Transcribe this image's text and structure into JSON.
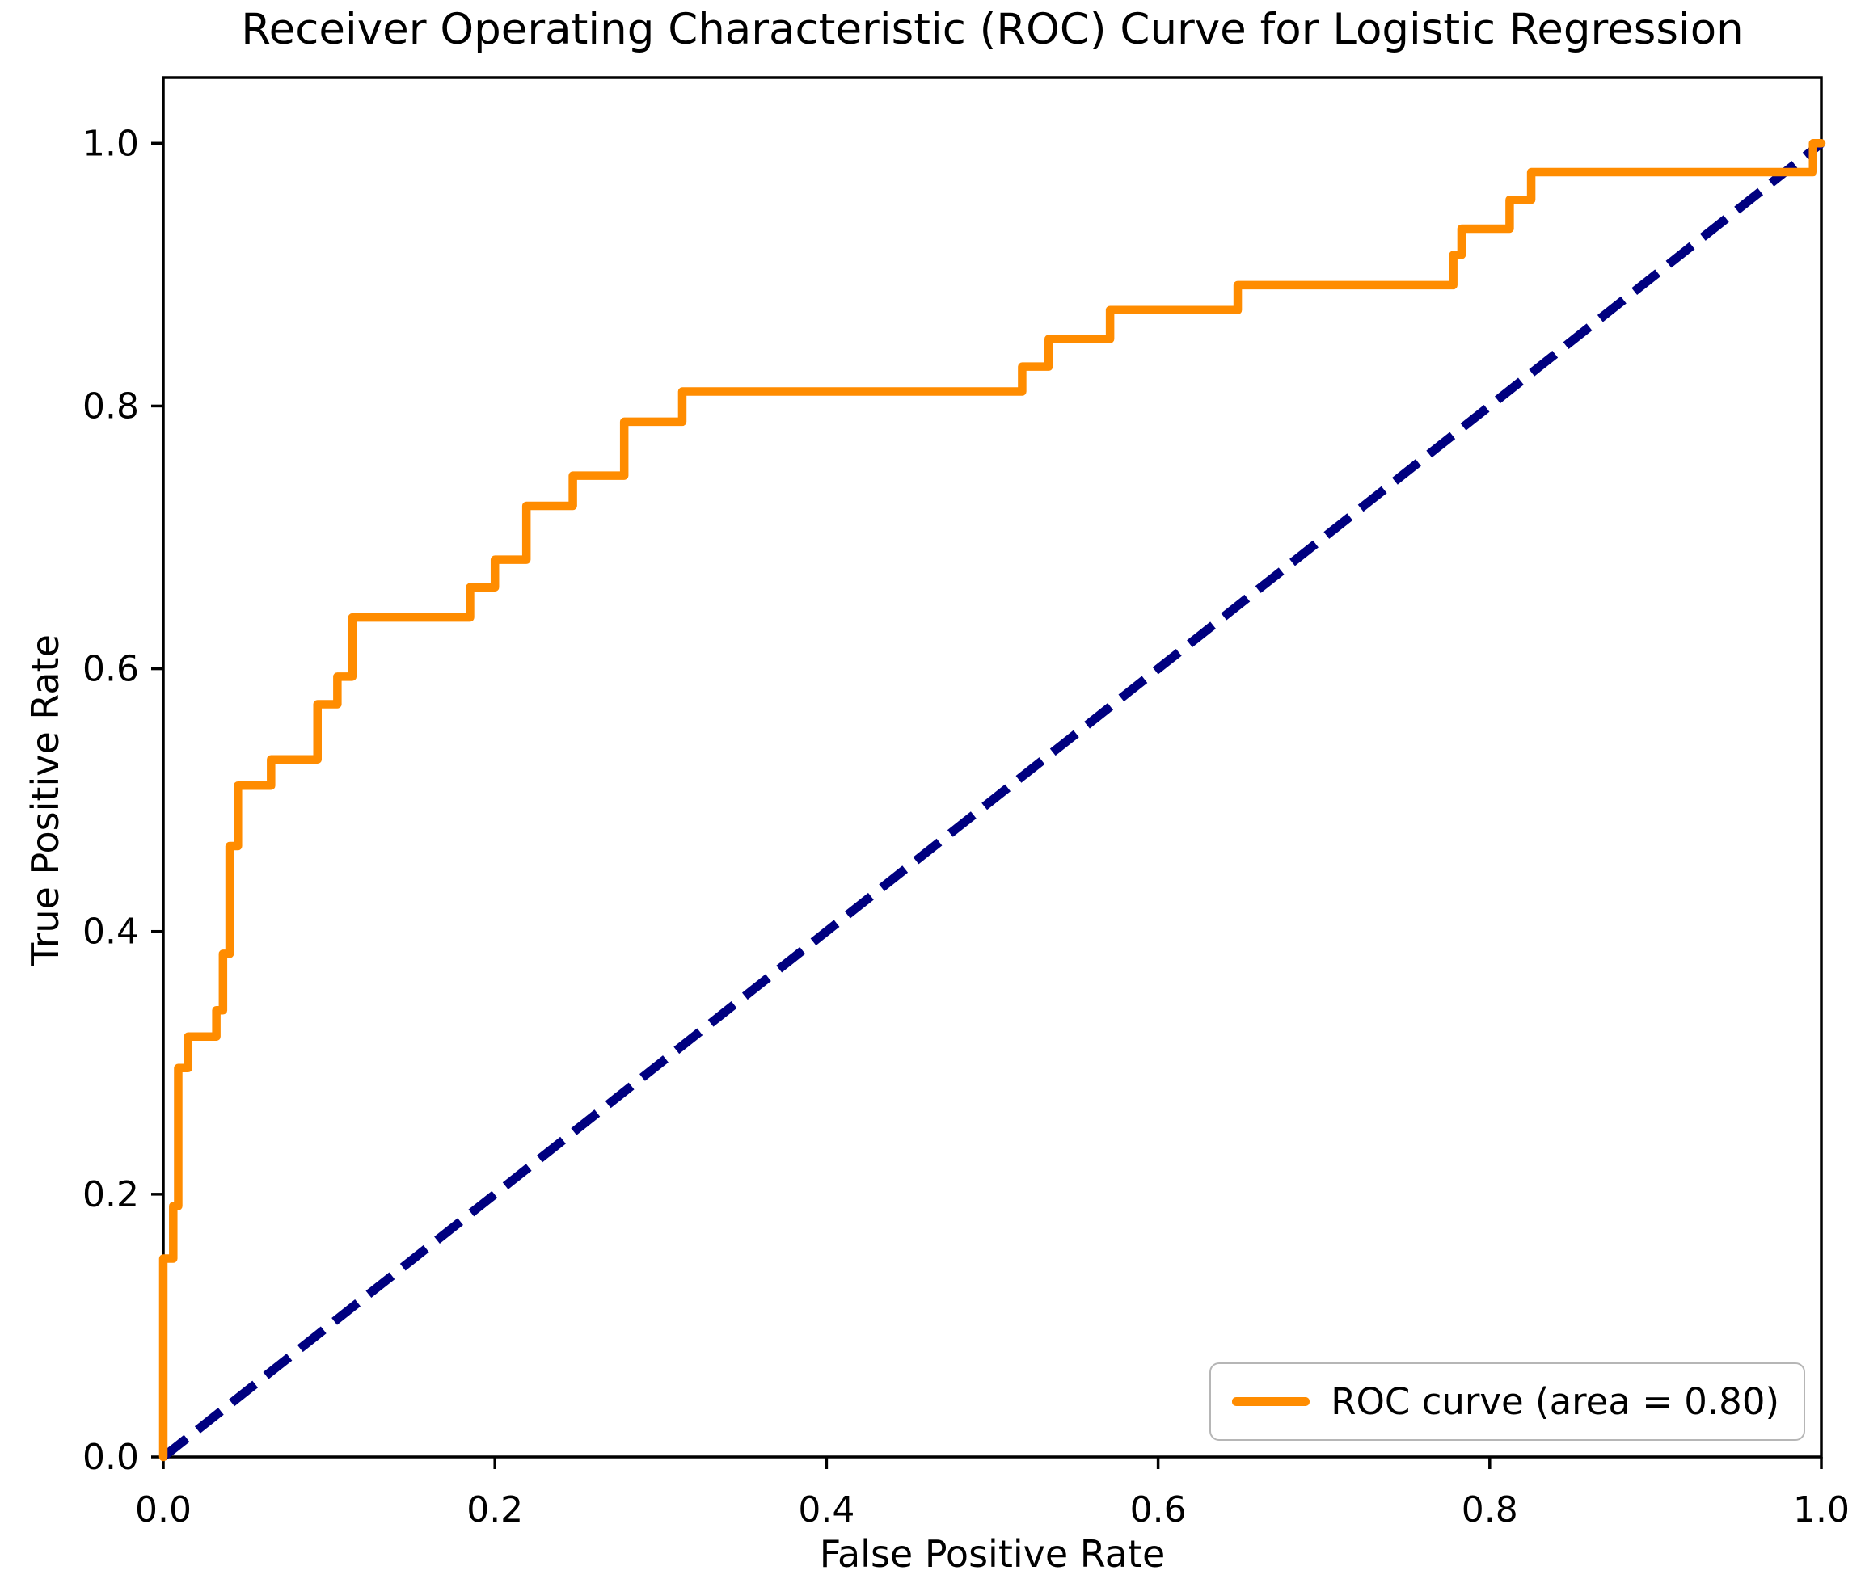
{
  "figure": {
    "title": "Receiver Operating Characteristic (ROC) Curve for Logistic Regression",
    "background": "#ffffff"
  },
  "axes": {
    "x_label": "False Positive Rate",
    "y_label": "True Positive Rate",
    "x_ticks": [
      "0.0",
      "0.2",
      "0.4",
      "0.6",
      "0.8",
      "1.0"
    ],
    "y_ticks": [
      "0.0",
      "0.2",
      "0.4",
      "0.6",
      "0.8",
      "1.0"
    ]
  },
  "legend": {
    "entries": [
      {
        "label": "ROC curve (area = 0.80)",
        "color": "#FF8C00"
      }
    ]
  },
  "colors": {
    "roc": "#FF8C00",
    "chance": "#000080",
    "spine": "#000000",
    "text": "#000000",
    "legend_border": "#b6b6b6"
  },
  "chart_data": {
    "type": "line",
    "title": "Receiver Operating Characteristic (ROC) Curve for Logistic Regression",
    "xlabel": "False Positive Rate",
    "ylabel": "True Positive Rate",
    "xlim": [
      0.0,
      1.0
    ],
    "ylim": [
      0.0,
      1.05
    ],
    "grid": false,
    "legend_position": "lower right",
    "auc": 0.8,
    "series": [
      {
        "name": "ROC curve (area = 0.80)",
        "color": "#FF8C00",
        "style": "solid",
        "fpr": [
          0.0,
          0.0,
          0.006,
          0.006,
          0.009,
          0.009,
          0.015,
          0.015,
          0.032,
          0.032,
          0.036,
          0.036,
          0.04,
          0.04,
          0.045,
          0.045,
          0.065,
          0.065,
          0.093,
          0.093,
          0.105,
          0.105,
          0.114,
          0.114,
          0.185,
          0.185,
          0.2,
          0.2,
          0.219,
          0.219,
          0.247,
          0.247,
          0.278,
          0.278,
          0.313,
          0.313,
          0.518,
          0.518,
          0.534,
          0.534,
          0.571,
          0.571,
          0.648,
          0.648,
          0.778,
          0.778,
          0.783,
          0.783,
          0.812,
          0.812,
          0.825,
          0.825,
          0.995,
          0.995,
          1.0
        ],
        "tpr": [
          0.0,
          0.151,
          0.151,
          0.191,
          0.191,
          0.296,
          0.296,
          0.32,
          0.32,
          0.34,
          0.34,
          0.383,
          0.383,
          0.465,
          0.465,
          0.511,
          0.511,
          0.531,
          0.531,
          0.573,
          0.573,
          0.594,
          0.594,
          0.639,
          0.639,
          0.662,
          0.662,
          0.683,
          0.683,
          0.724,
          0.724,
          0.747,
          0.747,
          0.788,
          0.788,
          0.811,
          0.811,
          0.83,
          0.83,
          0.851,
          0.851,
          0.873,
          0.873,
          0.892,
          0.892,
          0.915,
          0.915,
          0.935,
          0.935,
          0.957,
          0.957,
          0.978,
          0.978,
          1.0,
          1.0
        ]
      },
      {
        "name": "chance-diagonal",
        "color": "#000080",
        "style": "dashed",
        "x": [
          0.0,
          1.0
        ],
        "y": [
          0.0,
          1.0
        ]
      }
    ]
  }
}
